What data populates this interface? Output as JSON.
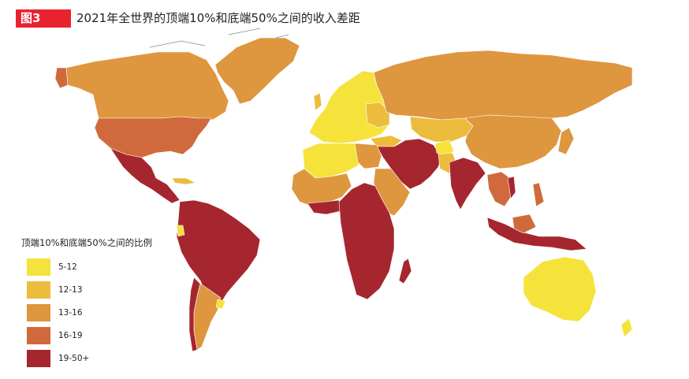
{
  "header": {
    "figure_label": "图3",
    "title": "2021年全世界的顶端10%和底端50%之间的收入差距"
  },
  "legend": {
    "title": "顶端10%和底端50%之间的比例",
    "items": [
      {
        "label": "5-12",
        "color": "#f5e33c"
      },
      {
        "label": "12-13",
        "color": "#ecbc3d"
      },
      {
        "label": "13-16",
        "color": "#de963f"
      },
      {
        "label": "16-19",
        "color": "#d06a3c"
      },
      {
        "label": "19-50+",
        "color": "#a6262f"
      }
    ]
  },
  "map": {
    "colors": {
      "c1": "#f5e33c",
      "c2": "#ecbc3d",
      "c3": "#de963f",
      "c4": "#d06a3c",
      "c5": "#a6262f",
      "border": "#ffffff",
      "coast": "#8a8a8a"
    }
  }
}
